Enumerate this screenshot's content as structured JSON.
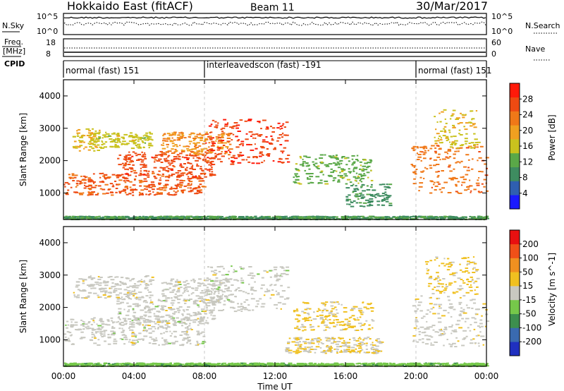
{
  "header": {
    "station": "Hokkaido East (fitACF)",
    "beam": "Beam 11",
    "date": "30/Mar/2017"
  },
  "status_panels": {
    "nsky_label": "N.Sky",
    "nsky_ticks": [
      "10^5",
      "10^0"
    ],
    "nsearch_label": "N.Search",
    "nsearch_ticks": [
      "10^5",
      "10^0"
    ],
    "freq_label_1": "Freq.",
    "freq_label_2": "[MHz]",
    "freq_ticks": [
      "18",
      "8"
    ],
    "nave_label": "Nave",
    "nave_ticks": [
      "60",
      "0"
    ],
    "cpid_label": "CPID"
  },
  "cpid_segments": [
    {
      "label": "normal (fast) 151",
      "start_h": 0,
      "end_h": 8
    },
    {
      "label": "interleavedscon (fast) -191",
      "start_h": 8,
      "end_h": 20
    },
    {
      "label": "normal (fast) 151",
      "start_h": 20,
      "end_h": 24
    }
  ],
  "x_axis": {
    "label": "Time UT",
    "ticks": [
      "00:00",
      "04:00",
      "08:00",
      "12:00",
      "16:00",
      "20:00",
      "00:00"
    ],
    "range_h": [
      0,
      24
    ]
  },
  "chart_data": [
    {
      "type": "heatmap",
      "quantity": "Power",
      "ylabel": "Slant Range [km]",
      "yticks": [
        "1000",
        "2000",
        "3000",
        "4000"
      ],
      "ylim_km": [
        180,
        4500
      ],
      "colorbar": {
        "label": "Power [dB]",
        "ticks": [
          "4",
          "8",
          "12",
          "16",
          "20",
          "24",
          "28"
        ],
        "range": [
          0,
          30
        ],
        "colors": [
          "#1a1aff",
          "#2f5fb0",
          "#3e8c60",
          "#5aa848",
          "#c9c21e",
          "#f0a020",
          "#f07818",
          "#ee4a12",
          "#ff1a0a"
        ]
      },
      "regions": [
        {
          "t0": 0.0,
          "t1": 8.0,
          "r0": 950,
          "r1": 1650,
          "level": 24
        },
        {
          "t0": 3.0,
          "t1": 8.5,
          "r0": 1500,
          "r1": 2300,
          "level": 25
        },
        {
          "t0": 5.5,
          "t1": 9.5,
          "r0": 2200,
          "r1": 2900,
          "level": 20
        },
        {
          "t0": 8.0,
          "t1": 12.7,
          "r0": 1900,
          "r1": 3300,
          "level": 26
        },
        {
          "t0": 0.5,
          "t1": 2.0,
          "r0": 2300,
          "r1": 3000,
          "level": 17
        },
        {
          "t0": 1.5,
          "t1": 5.0,
          "r0": 2400,
          "r1": 2900,
          "level": 15
        },
        {
          "t0": 13.0,
          "t1": 17.5,
          "r0": 1300,
          "r1": 2200,
          "level": 12
        },
        {
          "t0": 16.0,
          "t1": 18.5,
          "r0": 600,
          "r1": 1300,
          "level": 9
        },
        {
          "t0": 19.7,
          "t1": 24.0,
          "r0": 1000,
          "r1": 2500,
          "level": 22
        },
        {
          "t0": 21.0,
          "t1": 23.5,
          "r0": 2400,
          "r1": 3600,
          "level": 16
        },
        {
          "t0": 0.0,
          "t1": 24.0,
          "r0": 200,
          "r1": 300,
          "level": 10
        }
      ]
    },
    {
      "type": "heatmap",
      "quantity": "Velocity",
      "ylabel": "Slant Range [km]",
      "yticks": [
        "1000",
        "2000",
        "3000",
        "4000"
      ],
      "ylim_km": [
        180,
        4500
      ],
      "colorbar": {
        "label": "Velocity [m s^-1]",
        "ticks": [
          "200",
          "100",
          "50",
          "15",
          "-15",
          "-50",
          "-100",
          "-200"
        ],
        "range": [
          -250,
          250
        ],
        "colors": [
          "#2030c0",
          "#3a6ab0",
          "#3d8f4e",
          "#76c84a",
          "#c8c8c0",
          "#f0c020",
          "#f09020",
          "#f05018",
          "#e81010"
        ]
      },
      "regions": [
        {
          "t0": 0.0,
          "t1": 8.0,
          "r0": 850,
          "r1": 1700,
          "level": 0
        },
        {
          "t0": 3.0,
          "t1": 8.5,
          "r0": 1500,
          "r1": 2300,
          "level": 0
        },
        {
          "t0": 5.5,
          "t1": 9.5,
          "r0": 2200,
          "r1": 2900,
          "level": 0
        },
        {
          "t0": 8.0,
          "t1": 12.7,
          "r0": 1900,
          "r1": 3300,
          "level": 0
        },
        {
          "t0": 0.5,
          "t1": 5.0,
          "r0": 2300,
          "r1": 3000,
          "level": 5
        },
        {
          "t0": 13.0,
          "t1": 17.5,
          "r0": 1300,
          "r1": 2200,
          "level": 40
        },
        {
          "t0": 12.5,
          "t1": 18.0,
          "r0": 600,
          "r1": 1100,
          "level": 30
        },
        {
          "t0": 19.7,
          "t1": 24.0,
          "r0": 800,
          "r1": 2400,
          "level": 10
        },
        {
          "t0": 20.5,
          "t1": 23.5,
          "r0": 2400,
          "r1": 3600,
          "level": 40
        },
        {
          "t0": 0.0,
          "t1": 24.0,
          "r0": 200,
          "r1": 300,
          "level": -60
        }
      ]
    }
  ]
}
